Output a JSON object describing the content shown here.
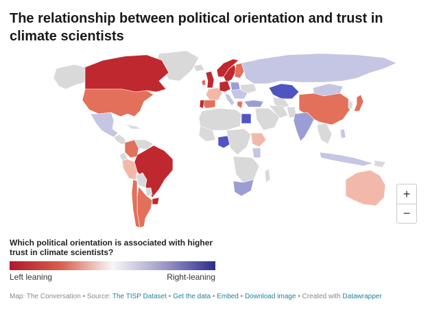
{
  "title": "The relationship between political orientation and trust in climate scientists",
  "colors": {
    "strong_left": "#c0282f",
    "medium_left": "#e2705b",
    "light_left": "#f2b9aa",
    "neutral": "#f0efef",
    "light_right": "#c5c5e4",
    "medium_right": "#9d9dd6",
    "strong_right": "#4f54c0",
    "no_data": "#d9d9d9"
  },
  "map": {
    "countries": [
      {
        "name": "Canada",
        "leaning": "strong_left"
      },
      {
        "name": "United States",
        "leaning": "medium_left"
      },
      {
        "name": "Mexico",
        "leaning": "light_right"
      },
      {
        "name": "Colombia",
        "leaning": "medium_left"
      },
      {
        "name": "Peru",
        "leaning": "light_left"
      },
      {
        "name": "Brazil",
        "leaning": "strong_left"
      },
      {
        "name": "Argentina",
        "leaning": "medium_left"
      },
      {
        "name": "Uruguay",
        "leaning": "strong_left"
      },
      {
        "name": "Chile",
        "leaning": "medium_left"
      },
      {
        "name": "Ireland",
        "leaning": "medium_left"
      },
      {
        "name": "United Kingdom",
        "leaning": "strong_left"
      },
      {
        "name": "France",
        "leaning": "light_left"
      },
      {
        "name": "Spain",
        "leaning": "medium_left"
      },
      {
        "name": "Portugal",
        "leaning": "strong_left"
      },
      {
        "name": "Germany",
        "leaning": "strong_left"
      },
      {
        "name": "Italy",
        "leaning": "light_right"
      },
      {
        "name": "Poland",
        "leaning": "medium_right"
      },
      {
        "name": "Norway",
        "leaning": "strong_left"
      },
      {
        "name": "Sweden",
        "leaning": "strong_left"
      },
      {
        "name": "Finland",
        "leaning": "medium_left"
      },
      {
        "name": "Russia",
        "leaning": "light_right"
      },
      {
        "name": "Turkey",
        "leaning": "medium_right"
      },
      {
        "name": "Greece",
        "leaning": "medium_left"
      },
      {
        "name": "Kazakhstan",
        "leaning": "strong_right"
      },
      {
        "name": "Egypt",
        "leaning": "strong_right"
      },
      {
        "name": "Nigeria",
        "leaning": "strong_right"
      },
      {
        "name": "Ethiopia",
        "leaning": "light_left"
      },
      {
        "name": "Kenya",
        "leaning": "light_right"
      },
      {
        "name": "South Africa",
        "leaning": "medium_right"
      },
      {
        "name": "Mongolia",
        "leaning": "light_right"
      },
      {
        "name": "China",
        "leaning": "medium_left"
      },
      {
        "name": "Japan",
        "leaning": "medium_left"
      },
      {
        "name": "India",
        "leaning": "medium_right"
      },
      {
        "name": "Australia",
        "leaning": "light_left"
      },
      {
        "name": "Indonesia",
        "leaning": "light_right"
      },
      {
        "name": "Philippines",
        "leaning": "light_right"
      }
    ]
  },
  "zoom": {
    "in_label": "+",
    "out_label": "−"
  },
  "legend": {
    "title": "Which political orientation is associated with higher trust in climate scientists?",
    "left_label": "Left leaning",
    "right_label": "Right-leaning"
  },
  "footer": {
    "prefix": "Map: The Conversation • Source: ",
    "source_link": "The TISP Dataset",
    "sep1": " • ",
    "get_data": "Get the data",
    "sep2": " • ",
    "embed": "Embed",
    "sep3": "  • ",
    "download": "Download image",
    "sep4": " • Created with ",
    "datawrapper": "Datawrapper"
  }
}
